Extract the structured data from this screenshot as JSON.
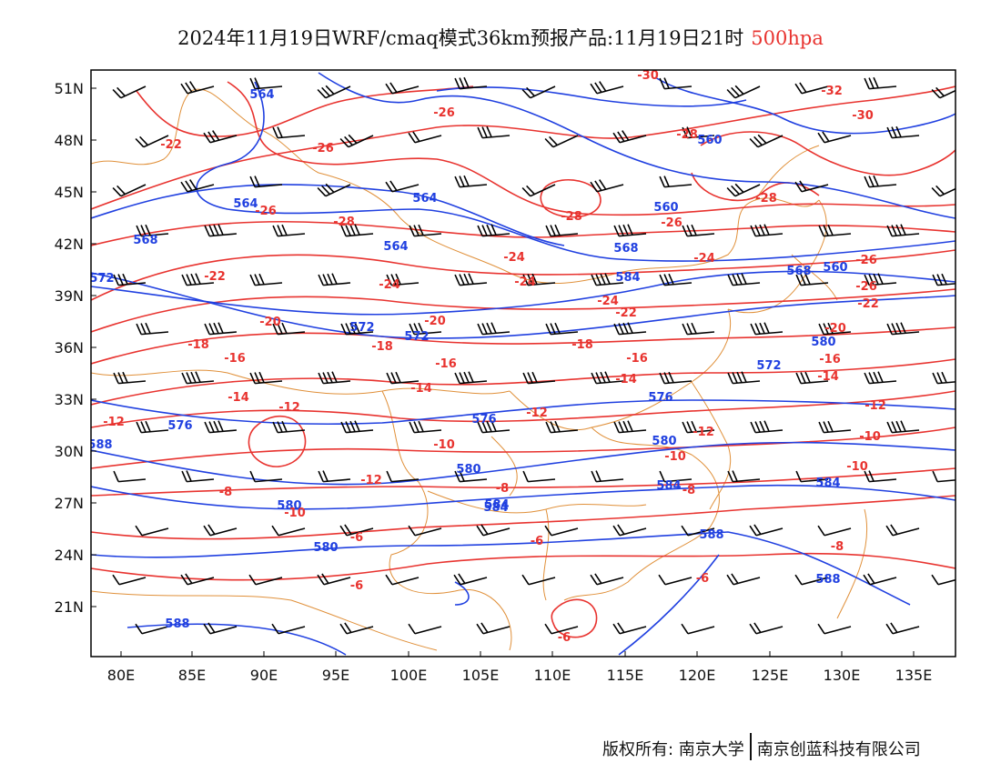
{
  "header": {
    "title": "2024年11月19日WRF/cmaq模式36km预报产品:11月19日21时",
    "level": "500hpa"
  },
  "axes": {
    "lat_labels": [
      "51N",
      "48N",
      "45N",
      "42N",
      "39N",
      "36N",
      "33N",
      "30N",
      "27N",
      "24N",
      "21N"
    ],
    "lon_labels": [
      "80E",
      "85E",
      "90E",
      "95E",
      "100E",
      "105E",
      "110E",
      "115E",
      "120E",
      "125E",
      "130E",
      "135E"
    ]
  },
  "legend_colors": {
    "height_contours": "#2040e0",
    "temperature_contours": "#e8332f",
    "wind_barbs": "#000000",
    "boundaries": "#e0903a"
  },
  "contour_labels": {
    "height": [
      "564",
      "564",
      "564",
      "564",
      "568",
      "568",
      "568",
      "560",
      "560",
      "560",
      "572",
      "572",
      "572",
      "572",
      "576",
      "576",
      "576",
      "580",
      "580",
      "580",
      "580",
      "580",
      "584",
      "584",
      "584",
      "584",
      "584",
      "588",
      "588",
      "588",
      "588"
    ],
    "temperature": [
      "-30",
      "-32",
      "-30",
      "-26",
      "-28",
      "-22",
      "-26",
      "-26",
      "-28",
      "-26",
      "-26",
      "-28",
      "-24",
      "-24",
      "-28",
      "-24",
      "-22",
      "-26",
      "-24",
      "-24",
      "-22",
      "-22",
      "-20",
      "-20",
      "-20",
      "-18",
      "-18",
      "-18",
      "-16",
      "-16",
      "-16",
      "-16",
      "-14",
      "-14",
      "-14",
      "-14",
      "-12",
      "-12",
      "-12",
      "-12",
      "-12",
      "-10",
      "-10",
      "-10",
      "-12",
      "-10",
      "-8",
      "-10",
      "-8",
      "-8",
      "-6",
      "-6",
      "-6",
      "-6",
      "-8",
      "-6"
    ]
  },
  "footer": {
    "copyright": "版权所有: 南京大学",
    "company": "南京创蓝科技有限公司"
  }
}
